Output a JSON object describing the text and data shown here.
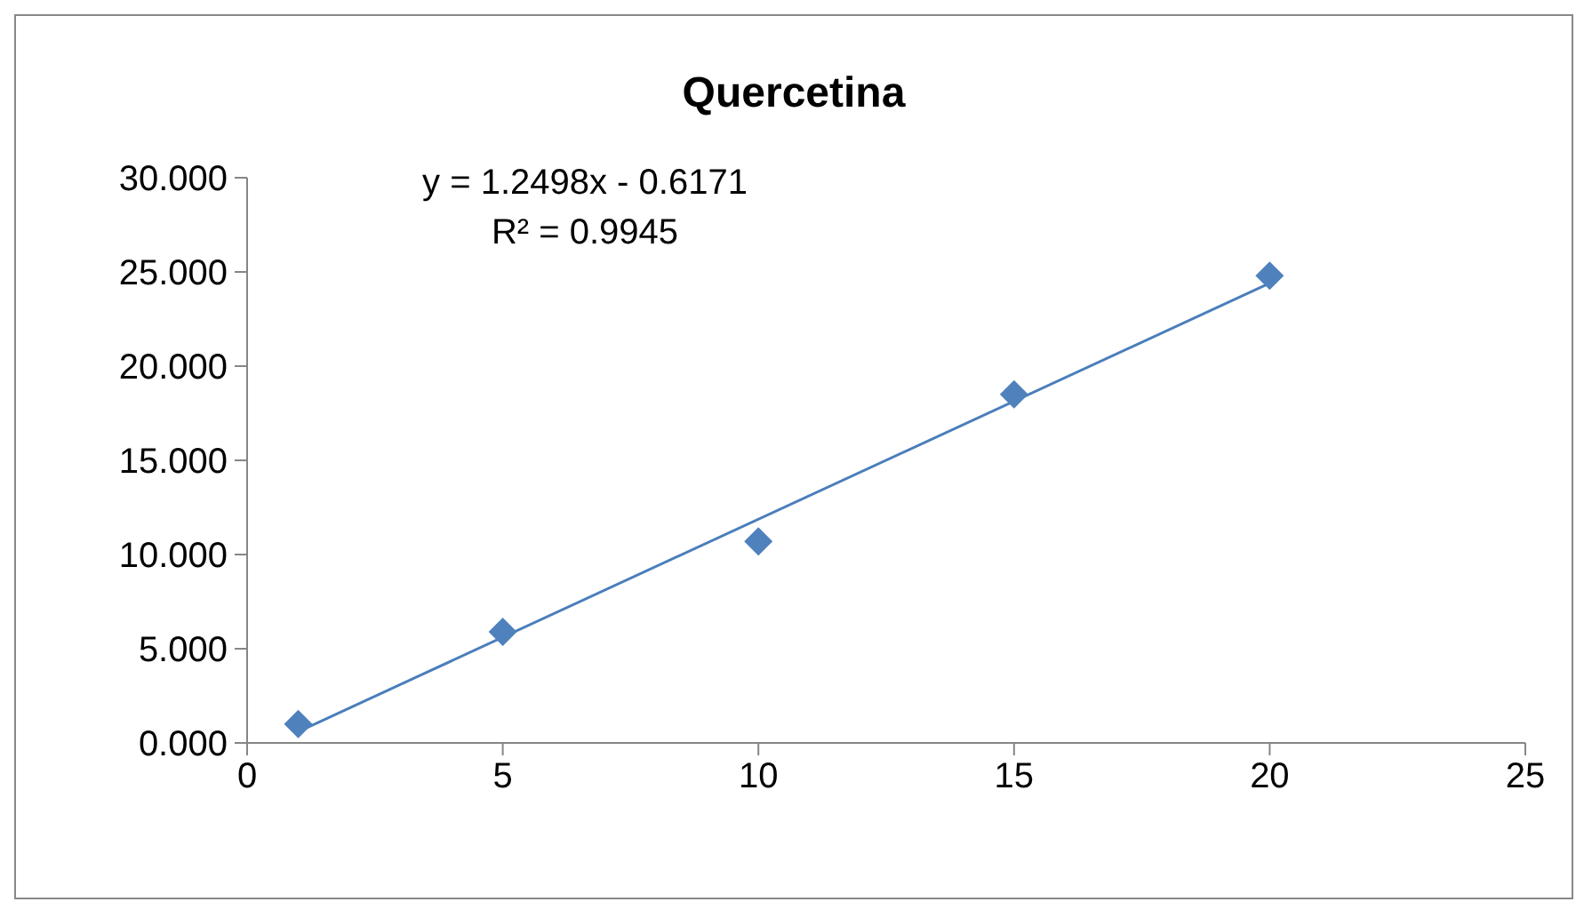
{
  "chart_data": {
    "type": "scatter",
    "title": "Quercetina",
    "x": [
      1,
      5,
      10,
      15,
      20
    ],
    "series": [
      {
        "type": "scatter",
        "color": "#4f81bd",
        "marker": "diamond",
        "values": [
          1.0,
          5.9,
          10.7,
          18.5,
          24.8
        ]
      },
      {
        "type": "line",
        "color": "#4a7ebb",
        "x": [
          1,
          20
        ],
        "values": [
          0.6,
          24.4
        ]
      }
    ],
    "xlim": [
      0,
      25
    ],
    "xticks": [
      0,
      5,
      10,
      15,
      20,
      25
    ],
    "ylim": [
      0,
      30
    ],
    "yticks": [
      {
        "value": 0,
        "label": "0.000"
      },
      {
        "value": 5,
        "label": "5.000"
      },
      {
        "value": 10,
        "label": "10.000"
      },
      {
        "value": 15,
        "label": "15.000"
      },
      {
        "value": 20,
        "label": "20.000"
      },
      {
        "value": 25,
        "label": "25.000"
      },
      {
        "value": 30,
        "label": "30.000"
      }
    ],
    "annotations": [
      "y = 1.2498x - 0.6171",
      "R² = 0.9945"
    ]
  }
}
